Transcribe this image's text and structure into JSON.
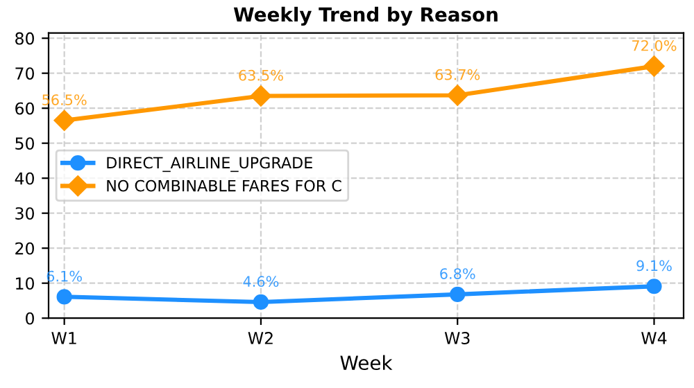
{
  "chart_data": {
    "type": "line",
    "title": "Weekly Trend by Reason",
    "xlabel": "Week",
    "categories": [
      "W1",
      "W2",
      "W3",
      "W4"
    ],
    "series": [
      {
        "name": "DIRECT_AIRLINE_UPGRADE",
        "color": "#1e90ff",
        "marker": "circle",
        "values": [
          6.1,
          4.6,
          6.8,
          9.1
        ],
        "value_labels": [
          "6.1%",
          "4.6%",
          "6.8%",
          "9.1%"
        ]
      },
      {
        "name": "NO COMBINABLE FARES FOR C",
        "color": "#ff9800",
        "marker": "diamond",
        "values": [
          56.5,
          63.5,
          63.7,
          72.0
        ],
        "value_labels": [
          "56.5%",
          "63.5%",
          "63.7%",
          "72.0%"
        ]
      }
    ],
    "ylim": [
      0,
      81.5
    ],
    "yticks": [
      0,
      10,
      20,
      30,
      40,
      50,
      60,
      70,
      80
    ],
    "grid": true,
    "legend": "center left",
    "line_style": "solid"
  }
}
